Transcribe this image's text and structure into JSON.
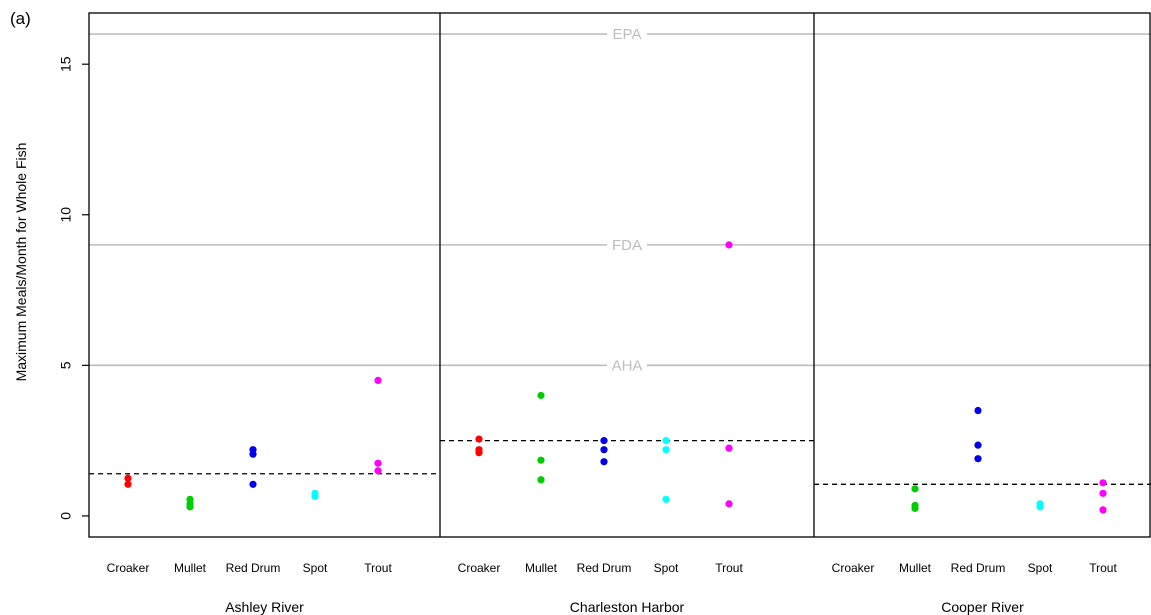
{
  "chart_data": {
    "type": "scatter",
    "panel_tag": "(a)",
    "title": "",
    "xlabel": "",
    "ylabel": "Maximum Meals/Month for Whole Fish",
    "ylim": [
      -0.7,
      16.7
    ],
    "yticks": [
      0,
      5,
      10,
      15
    ],
    "grid": false,
    "categories": [
      "Croaker",
      "Mullet",
      "Red Drum",
      "Spot",
      "Trout"
    ],
    "category_colors": {
      "Croaker": "#ff0000",
      "Mullet": "#00cd00",
      "Red Drum": "#0000ee",
      "Spot": "#00ffff",
      "Trout": "#ff00ff"
    },
    "reference_lines": [
      {
        "label": "EPA",
        "value": 16,
        "color": "#bdbdbd"
      },
      {
        "label": "FDA",
        "value": 9,
        "color": "#bdbdbd"
      },
      {
        "label": "AHA",
        "value": 5,
        "color": "#bdbdbd"
      }
    ],
    "panels": [
      {
        "name": "Ashley River",
        "mean_line": 1.4,
        "series": [
          {
            "category": "Croaker",
            "values": [
              1.05,
              1.25
            ]
          },
          {
            "category": "Mullet",
            "values": [
              0.3,
              0.4,
              0.55
            ]
          },
          {
            "category": "Red Drum",
            "values": [
              1.05,
              2.05,
              2.2
            ]
          },
          {
            "category": "Spot",
            "values": [
              0.65,
              0.75
            ]
          },
          {
            "category": "Trout",
            "values": [
              1.5,
              1.75,
              4.5
            ]
          }
        ]
      },
      {
        "name": "Charleston Harbor",
        "mean_line": 2.5,
        "series": [
          {
            "category": "Croaker",
            "values": [
              2.1,
              2.2,
              2.55
            ]
          },
          {
            "category": "Mullet",
            "values": [
              1.2,
              1.85,
              4.0
            ]
          },
          {
            "category": "Red Drum",
            "values": [
              1.8,
              2.2,
              2.5
            ]
          },
          {
            "category": "Spot",
            "values": [
              0.55,
              2.2,
              2.5
            ]
          },
          {
            "category": "Trout",
            "values": [
              0.4,
              2.25,
              9.0
            ]
          }
        ]
      },
      {
        "name": "Cooper River",
        "mean_line": 1.05,
        "series": [
          {
            "category": "Croaker",
            "values": []
          },
          {
            "category": "Mullet",
            "values": [
              0.25,
              0.35,
              0.9
            ]
          },
          {
            "category": "Red Drum",
            "values": [
              1.9,
              2.35,
              3.5
            ]
          },
          {
            "category": "Spot",
            "values": [
              0.3,
              0.4
            ]
          },
          {
            "category": "Trout",
            "values": [
              0.2,
              0.75,
              1.1
            ]
          }
        ]
      }
    ]
  }
}
